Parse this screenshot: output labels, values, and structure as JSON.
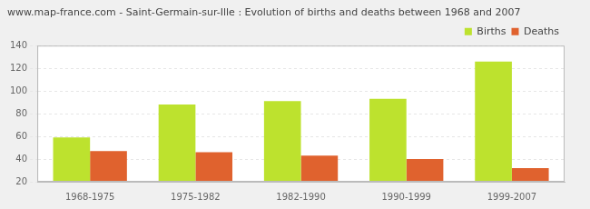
{
  "chart_data": {
    "type": "bar",
    "title": "www.map-france.com - Saint-Germain-sur-Ille : Evolution of births and deaths between 1968 and 2007",
    "categories": [
      "1968-1975",
      "1975-1982",
      "1982-1990",
      "1990-1999",
      "1999-2007"
    ],
    "series": [
      {
        "name": "Births",
        "color": "#bde22e",
        "values": [
          59,
          88,
          91,
          93,
          126
        ]
      },
      {
        "name": "Deaths",
        "color": "#e0622e",
        "values": [
          47,
          46,
          43,
          40,
          32
        ]
      }
    ],
    "ylim": [
      20,
      140
    ],
    "yticks": [
      20,
      40,
      60,
      80,
      100,
      120,
      140
    ],
    "grid": true,
    "legend": "top-right"
  }
}
